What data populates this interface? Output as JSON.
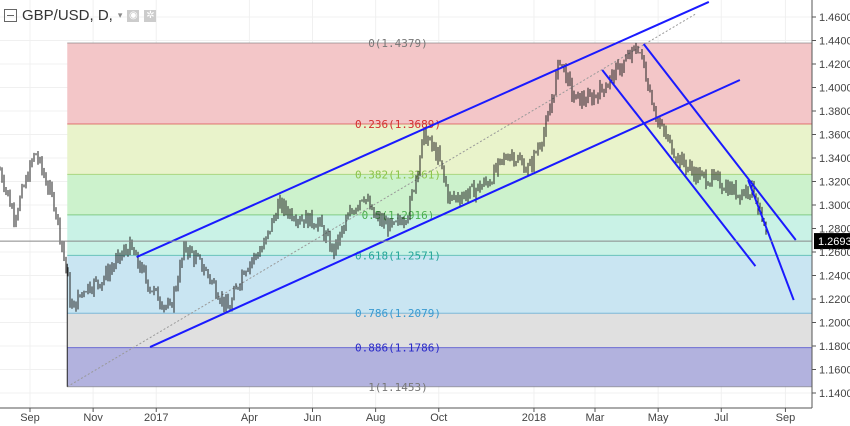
{
  "header": {
    "symbol": "GBP/USD, D,",
    "icons": [
      "collapse-icon",
      "dropdown-caret-icon",
      "eye-icon",
      "gear-icon"
    ]
  },
  "chart_data": {
    "type": "ohlc",
    "title": "GBP/USD, D,",
    "yaxis": {
      "ticks": [
        "1.4600",
        "1.4400",
        "1.4200",
        "1.4000",
        "1.3800",
        "1.3600",
        "1.3400",
        "1.3200",
        "1.3000",
        "1.2800",
        "1.2600",
        "1.2400",
        "1.2200",
        "1.2000",
        "1.1800",
        "1.1600",
        "1.1400"
      ],
      "range": [
        1.13,
        1.475
      ]
    },
    "xaxis": {
      "ticks": [
        {
          "label": "Sep",
          "date": "2016-09-01"
        },
        {
          "label": "Nov",
          "date": "2016-11-01"
        },
        {
          "label": "2017",
          "date": "2017-01-01"
        },
        {
          "label": "Apr",
          "date": "2017-04-01"
        },
        {
          "label": "Jun",
          "date": "2017-06-01"
        },
        {
          "label": "Aug",
          "date": "2017-08-01"
        },
        {
          "label": "Oct",
          "date": "2017-10-01"
        },
        {
          "label": "2018",
          "date": "2018-01-01"
        },
        {
          "label": "Mar",
          "date": "2018-03-01"
        },
        {
          "label": "May",
          "date": "2018-05-01"
        },
        {
          "label": "Jul",
          "date": "2018-07-01"
        },
        {
          "label": "Sep",
          "date": "2018-09-01"
        }
      ]
    },
    "last_price": {
      "label": "1.2693",
      "value": 1.2693
    },
    "price_path": [
      [
        "2016-08-03",
        1.33
      ],
      [
        "2016-08-17",
        1.29
      ],
      [
        "2016-09-06",
        1.345
      ],
      [
        "2016-09-25",
        1.3
      ],
      [
        "2016-10-07",
        1.24
      ],
      [
        "2016-10-11",
        1.21
      ],
      [
        "2016-10-24",
        1.23
      ],
      [
        "2016-11-08",
        1.235
      ],
      [
        "2016-12-06",
        1.265
      ],
      [
        "2016-12-26",
        1.23
      ],
      [
        "2017-01-14",
        1.21
      ],
      [
        "2017-01-29",
        1.265
      ],
      [
        "2017-02-17",
        1.245
      ],
      [
        "2017-03-12",
        1.21
      ],
      [
        "2017-03-26",
        1.245
      ],
      [
        "2017-04-15",
        1.265
      ],
      [
        "2017-04-29",
        1.3
      ],
      [
        "2017-05-18",
        1.29
      ],
      [
        "2017-06-07",
        1.285
      ],
      [
        "2017-06-21",
        1.26
      ],
      [
        "2017-07-06",
        1.29
      ],
      [
        "2017-07-20",
        1.31
      ],
      [
        "2017-07-30",
        1.29
      ],
      [
        "2017-08-18",
        1.28
      ],
      [
        "2017-09-02",
        1.295
      ],
      [
        "2017-09-17",
        1.36
      ],
      [
        "2017-10-01",
        1.34
      ],
      [
        "2017-10-11",
        1.305
      ],
      [
        "2017-10-30",
        1.31
      ],
      [
        "2017-11-18",
        1.32
      ],
      [
        "2017-12-08",
        1.345
      ],
      [
        "2017-12-27",
        1.33
      ],
      [
        "2018-01-14",
        1.37
      ],
      [
        "2018-01-26",
        1.425
      ],
      [
        "2018-02-09",
        1.39
      ],
      [
        "2018-02-24",
        1.39
      ],
      [
        "2018-03-09",
        1.4
      ],
      [
        "2018-03-23",
        1.415
      ],
      [
        "2018-04-12",
        1.435
      ],
      [
        "2018-05-01",
        1.37
      ],
      [
        "2018-05-20",
        1.34
      ],
      [
        "2018-06-08",
        1.325
      ],
      [
        "2018-06-28",
        1.32
      ],
      [
        "2018-07-17",
        1.31
      ],
      [
        "2018-08-01",
        1.315
      ],
      [
        "2018-08-14",
        1.2693
      ]
    ],
    "fib_retracement": {
      "start_date": "2016-10-07",
      "high": 1.4379,
      "low": 1.1453,
      "levels": [
        {
          "label": "0(1.4379)",
          "ratio": 0,
          "price": 1.4379,
          "color": "#777777",
          "fill": "#f3c6c8"
        },
        {
          "label": "0.236(1.3689)",
          "ratio": 0.236,
          "price": 1.3689,
          "color": "#d32f2f",
          "fill": "#e9f3cb"
        },
        {
          "label": "0.382(1.3261)",
          "ratio": 0.382,
          "price": 1.3261,
          "color": "#8bc34a",
          "fill": "#ccf2cc"
        },
        {
          "label": "0.5(1.2916)",
          "ratio": 0.5,
          "price": 1.2916,
          "color": "#4caf50",
          "fill": "#c9f2e6"
        },
        {
          "label": "0.618(1.2571)",
          "ratio": 0.618,
          "price": 1.2571,
          "color": "#26a69a",
          "fill": "#c9e5f2"
        },
        {
          "label": "0.786(1.2079)",
          "ratio": 0.786,
          "price": 1.2079,
          "color": "#3a9ad0",
          "fill": "#e0e0e0"
        },
        {
          "label": "0.886(1.1786)",
          "ratio": 0.886,
          "price": 1.1786,
          "color": "#2a2ac8",
          "fill": "#b2b2de"
        },
        {
          "label": "1(1.1453)",
          "ratio": 1,
          "price": 1.1453,
          "color": "#777777",
          "fill": null
        }
      ]
    },
    "trendlines": [
      {
        "name": "upper-channel",
        "color": "#1a1aff",
        "points": [
          [
            "2016-12-13",
            1.2557
          ],
          [
            "2018-06-19",
            1.4728
          ]
        ]
      },
      {
        "name": "lower-channel",
        "color": "#1a1aff",
        "points": [
          [
            "2016-12-26",
            1.1791
          ],
          [
            "2018-07-19",
            1.4064
          ]
        ]
      },
      {
        "name": "down-channel-upper",
        "color": "#1a1aff",
        "points": [
          [
            "2018-04-17",
            1.437
          ],
          [
            "2018-09-11",
            1.2702
          ]
        ]
      },
      {
        "name": "down-channel-lower",
        "color": "#1a1aff",
        "points": [
          [
            "2018-03-08",
            1.4149
          ],
          [
            "2018-08-03",
            1.248
          ]
        ]
      },
      {
        "name": "steep-downtrend",
        "color": "#1a1aff",
        "points": [
          [
            "2018-07-27",
            1.3213
          ],
          [
            "2018-09-09",
            1.2191
          ]
        ]
      }
    ]
  }
}
